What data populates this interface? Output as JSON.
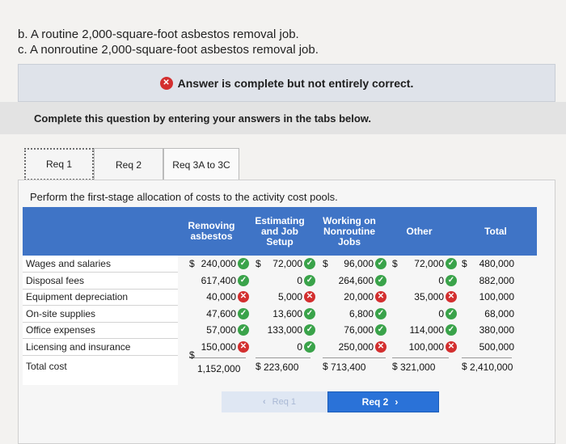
{
  "question": {
    "item_b": "b. A routine 2,000-square-foot asbestos removal job.",
    "item_c": "c. A nonroutine 2,000-square-foot asbestos removal job."
  },
  "banner": {
    "message": "Answer is complete but not entirely correct."
  },
  "instructions": {
    "complete": "Complete this question by entering your answers in the tabs below."
  },
  "tabs": [
    {
      "label": "Req 1"
    },
    {
      "label": "Req 2"
    },
    {
      "label": "Req 3A to 3C"
    }
  ],
  "panel": {
    "instruction": "Perform the first-stage allocation of costs to the activity cost pools."
  },
  "table": {
    "columns": [
      "Removing asbestos",
      "Estimating and Job Setup",
      "Working on Nonroutine Jobs",
      "Other",
      "Total"
    ],
    "rows": [
      {
        "label": "Wages and salaries",
        "cells": [
          "240,000",
          "72,000",
          "96,000",
          "72,000",
          "480,000"
        ],
        "status": [
          "check",
          "check",
          "check",
          "check",
          ""
        ]
      },
      {
        "label": "Disposal fees",
        "cells": [
          "617,400",
          "0",
          "264,600",
          "0",
          "882,000"
        ],
        "status": [
          "check",
          "check",
          "check",
          "check",
          ""
        ]
      },
      {
        "label": "Equipment depreciation",
        "cells": [
          "40,000",
          "5,000",
          "20,000",
          "35,000",
          "100,000"
        ],
        "status": [
          "cross",
          "cross",
          "cross",
          "cross",
          ""
        ]
      },
      {
        "label": "On-site supplies",
        "cells": [
          "47,600",
          "13,600",
          "6,800",
          "0",
          "68,000"
        ],
        "status": [
          "check",
          "check",
          "check",
          "check",
          ""
        ]
      },
      {
        "label": "Office expenses",
        "cells": [
          "57,000",
          "133,000",
          "76,000",
          "114,000",
          "380,000"
        ],
        "status": [
          "check",
          "check",
          "check",
          "check",
          ""
        ]
      },
      {
        "label": "Licensing and insurance",
        "cells": [
          "150,000",
          "0",
          "250,000",
          "100,000",
          "500,000"
        ],
        "status": [
          "cross",
          "check",
          "cross",
          "cross",
          ""
        ]
      }
    ],
    "total": {
      "label": "Total cost",
      "cells": [
        "1,152,000",
        "223,600",
        "713,400",
        "321,000",
        "2,410,000"
      ]
    },
    "currency_symbol": "$"
  },
  "nav": {
    "prev_label": "Req 1",
    "next_label": "Req 2"
  },
  "colors": {
    "header_blue": "#3f74c6",
    "check_green": "#3aa34a",
    "cross_red": "#d32f2f",
    "next_button": "#2a72d8"
  },
  "icons": {
    "check": "check-icon",
    "cross": "x-icon"
  }
}
